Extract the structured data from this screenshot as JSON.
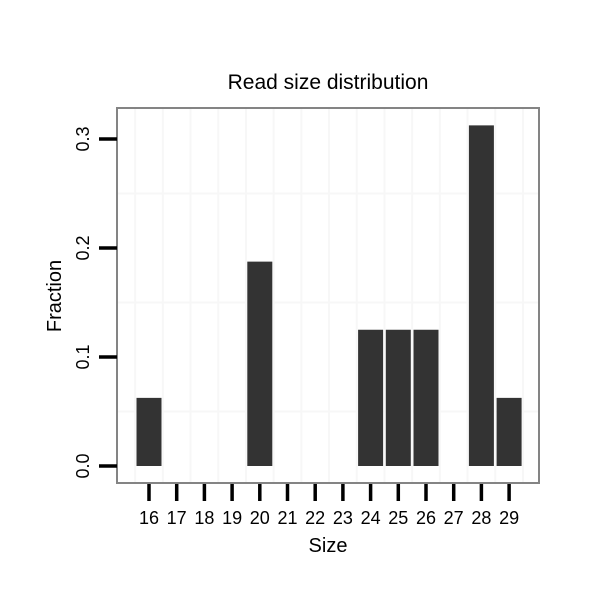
{
  "chart_data": {
    "type": "bar",
    "title": "Read size distribution",
    "xlabel": "Size",
    "ylabel": "Fraction",
    "categories": [
      "16",
      "17",
      "18",
      "19",
      "20",
      "21",
      "22",
      "23",
      "24",
      "25",
      "26",
      "27",
      "28",
      "29"
    ],
    "values": [
      0.0625,
      0,
      0,
      0,
      0.1875,
      0,
      0,
      0,
      0.125,
      0.125,
      0.125,
      0,
      0.3125,
      0.0625
    ],
    "yticks": [
      0.0,
      0.1,
      0.2,
      0.3
    ],
    "ytick_labels": [
      "0.0",
      "0.1",
      "0.2",
      "0.3"
    ],
    "ylim": [
      -0.0156,
      0.3284
    ],
    "minor_gridlines_y": [
      0.05,
      0.15,
      0.25
    ],
    "grid_vertical": "between-categories",
    "legend": "none",
    "bar_color": "#333333",
    "colors": {
      "background": "#ffffff",
      "panel_background": "#ffffff",
      "panel_border": "#848484",
      "gridline": "#f7f7f7",
      "tick": "#000000",
      "text": "#000000"
    }
  }
}
